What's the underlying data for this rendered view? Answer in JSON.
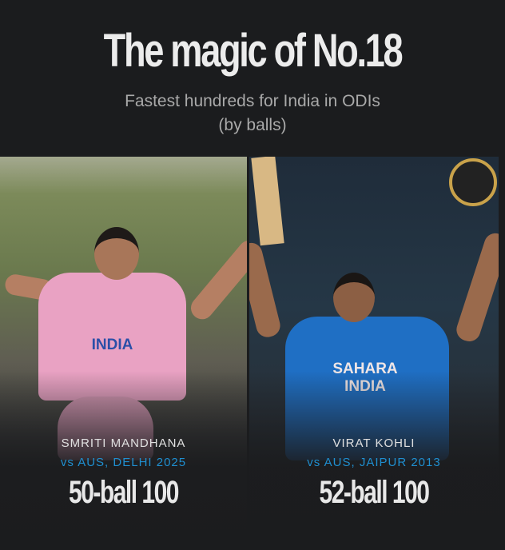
{
  "header": {
    "title": "The magic of No.18",
    "subtitle_line1": "Fastest hundreds for India in ODIs",
    "subtitle_line2": "(by balls)"
  },
  "players": [
    {
      "name": "SMRITI MANDHANA",
      "match": "vs AUS, DELHI 2025",
      "stat": "50-ball 100",
      "jersey_text": "INDIA",
      "jersey_color": "#e9a2c3"
    },
    {
      "name": "VIRAT KOHLI",
      "match": "vs AUS, JAIPUR 2013",
      "stat": "52-ball 100",
      "jersey_text": "SAHARA INDIA",
      "jersey_color": "#1f6fc4"
    }
  ],
  "colors": {
    "background": "#1b1c1e",
    "accent": "#1f8fd0"
  }
}
